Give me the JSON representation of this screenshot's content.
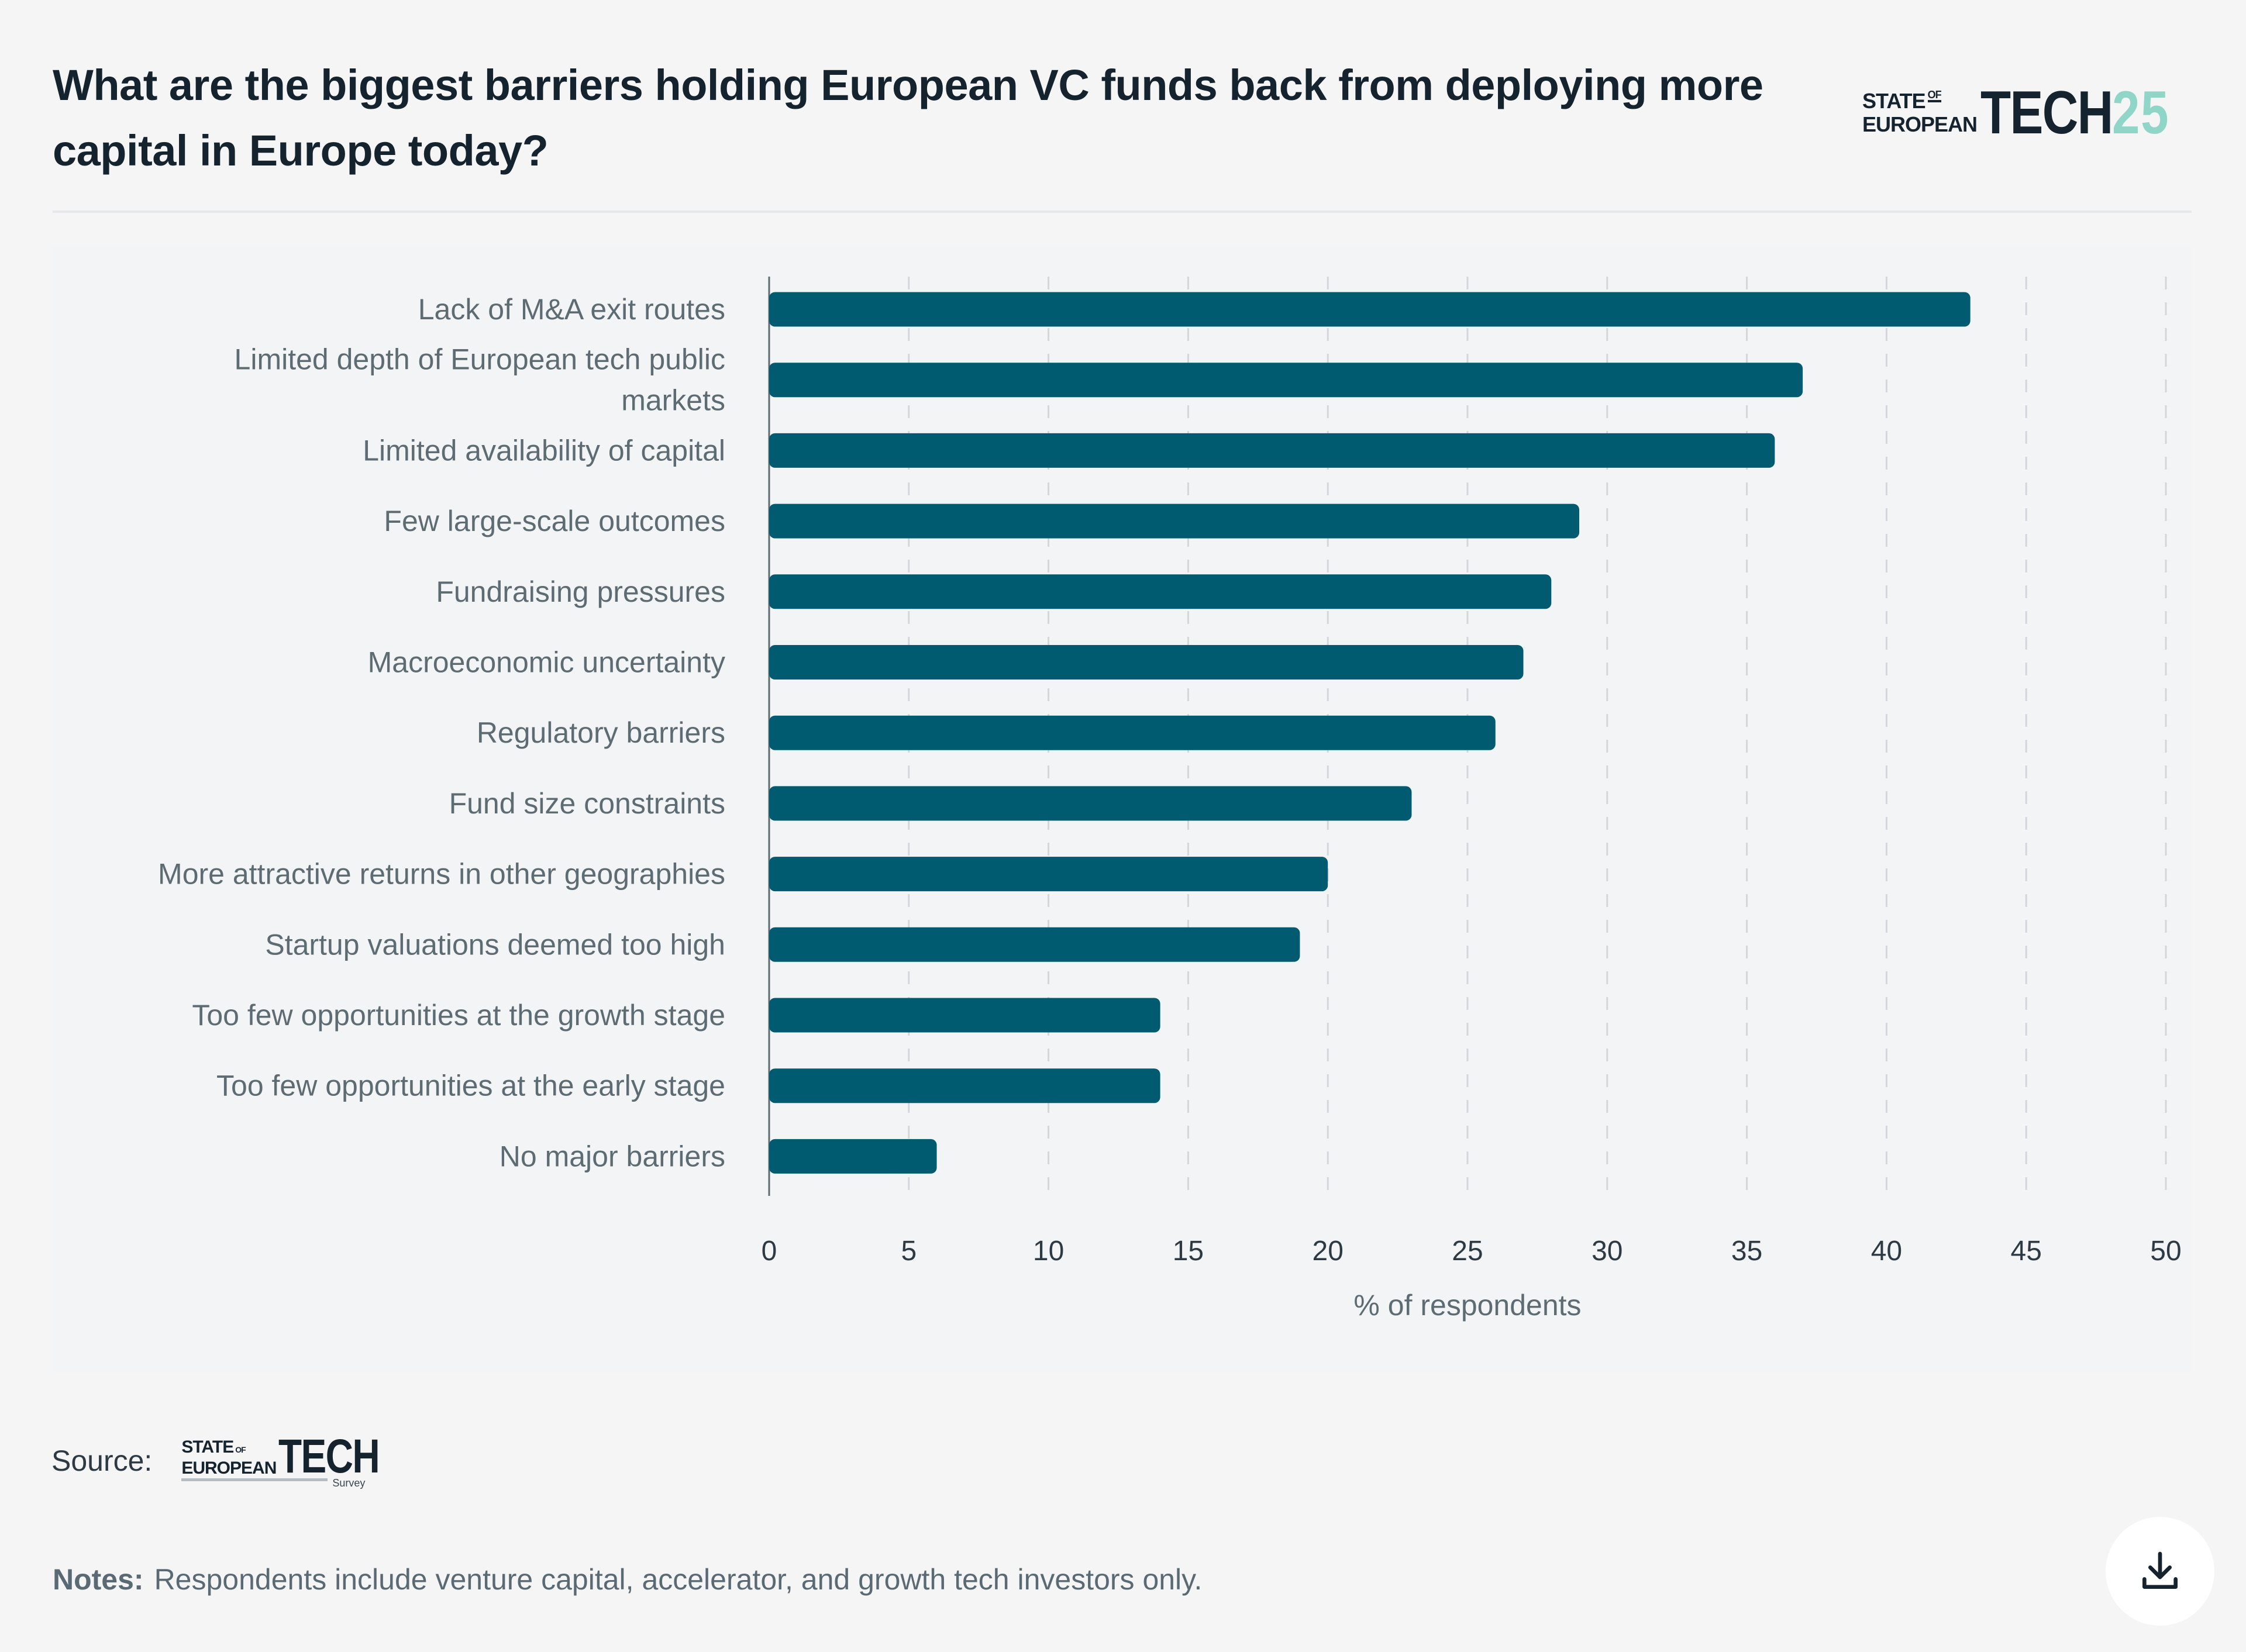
{
  "title": "What are the biggest barriers holding European VC funds back from deploying more capital in Europe today?",
  "logo": {
    "line1": "STATE",
    "of": "OF",
    "line2": "EUROPEAN",
    "big": "TECH",
    "year": "25",
    "accent_color": "#8fd5c8"
  },
  "source": {
    "label": "Source:",
    "logo": {
      "line1": "STATE",
      "of": "OF",
      "line2": "EUROPEAN",
      "big": "TECH",
      "sub": "Survey"
    }
  },
  "notes": {
    "label": "Notes:",
    "text": "Respondents include venture capital, accelerator, and growth tech investors only."
  },
  "download_button": {
    "icon": "download-icon"
  },
  "colors": {
    "bar": "#005b70",
    "grid": "#d3d7db",
    "axis": "#5d6b73",
    "label": "#5d6b73"
  },
  "chart_data": {
    "type": "bar",
    "orientation": "horizontal",
    "title": "What are the biggest barriers holding European VC funds back from deploying more capital in Europe today?",
    "categories": [
      "Lack of M&A exit routes",
      "Limited depth of European tech public markets",
      "Limited availability of capital",
      "Few large-scale outcomes",
      "Fundraising pressures",
      "Macroeconomic uncertainty",
      "Regulatory barriers",
      "Fund size constraints",
      "More attractive returns in other geographies",
      "Startup valuations deemed too high",
      "Too few opportunities at the growth stage",
      "Too few opportunities at the early stage",
      "No major barriers"
    ],
    "category_lines": [
      [
        "Lack of M&A exit routes"
      ],
      [
        "Limited depth of European tech public",
        "markets"
      ],
      [
        "Limited availability of capital"
      ],
      [
        "Few large-scale outcomes"
      ],
      [
        "Fundraising pressures"
      ],
      [
        "Macroeconomic uncertainty"
      ],
      [
        "Regulatory barriers"
      ],
      [
        "Fund size constraints"
      ],
      [
        "More attractive returns in other geographies"
      ],
      [
        "Startup valuations deemed too high"
      ],
      [
        "Too few opportunities at the growth stage"
      ],
      [
        "Too few opportunities at the early stage"
      ],
      [
        "No major barriers"
      ]
    ],
    "values": [
      43,
      37,
      36,
      29,
      28,
      27,
      26,
      23,
      20,
      19,
      14,
      14,
      6
    ],
    "xlabel": "% of respondents",
    "ylabel": "",
    "xlim": [
      0,
      50
    ],
    "xticks": [
      0,
      5,
      10,
      15,
      20,
      25,
      30,
      35,
      40,
      45,
      50
    ],
    "grid": "vertical dashed",
    "legend": "none"
  }
}
